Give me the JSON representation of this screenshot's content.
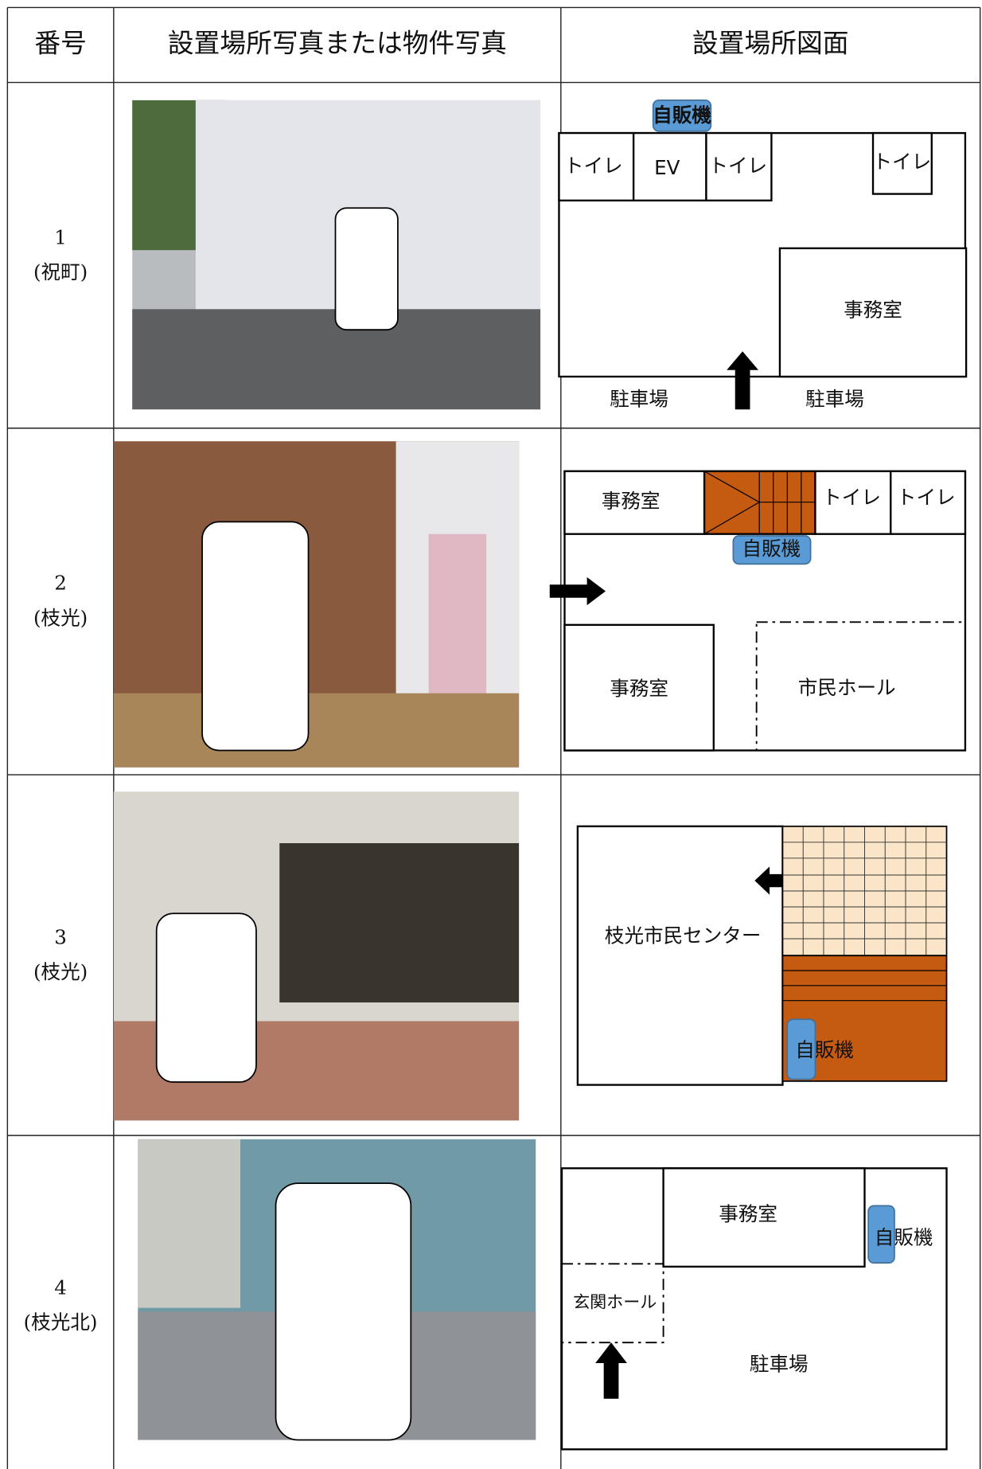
{
  "table": {
    "headers": [
      "番号",
      "設置場所写真または物件写真",
      "設置場所図面"
    ],
    "rows": [
      {
        "number": "1",
        "place": "(祝町)",
        "plan_labels": [
          "自販機",
          "トイレ",
          "EV",
          "トイレ",
          "トイレ",
          "事務室",
          "駐車場",
          "駐車場"
        ]
      },
      {
        "number": "2",
        "place": "(枝光)",
        "plan_labels": [
          "事務室",
          "トイレ",
          "トイレ",
          "自販機",
          "事務室",
          "市民ホール"
        ]
      },
      {
        "number": "3",
        "place": "(枝光)",
        "plan_labels": [
          "枝光市民センター",
          "自販機"
        ]
      },
      {
        "number": "4",
        "place": "(枝光北)",
        "plan_labels": [
          "事務室",
          "自販機",
          "玄関ホール",
          "駐車場"
        ]
      }
    ]
  }
}
